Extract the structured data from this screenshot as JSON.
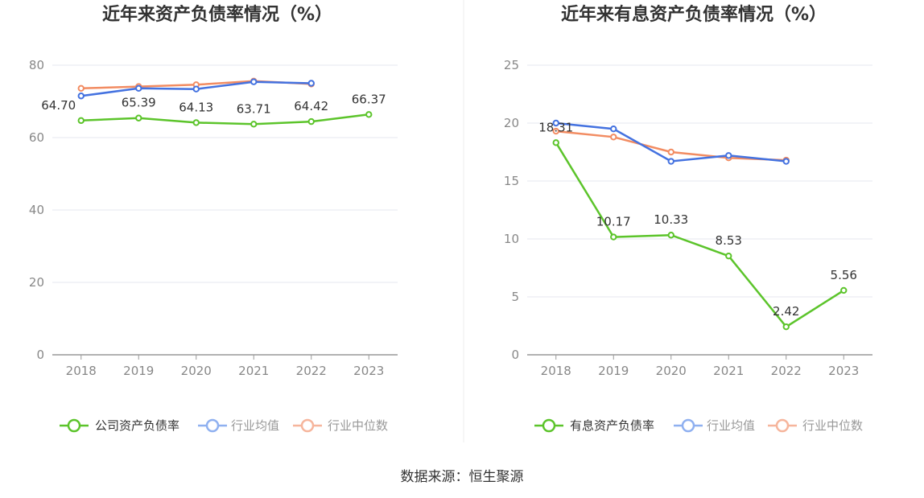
{
  "source": "数据来源：恒生聚源",
  "chart_data": [
    {
      "type": "line",
      "title": "近年来资产负债率情况（%）",
      "categories": [
        "2018",
        "2019",
        "2020",
        "2021",
        "2022",
        "2023"
      ],
      "ylim": [
        0,
        80
      ],
      "yticks": [
        "0",
        "20",
        "40",
        "60",
        "80"
      ],
      "grid": true,
      "legend_position": "bottom",
      "series": [
        {
          "name": "公司资产负债率",
          "color": "#5cc42b",
          "values": [
            64.7,
            65.39,
            64.13,
            63.71,
            64.42,
            66.37
          ],
          "labels": [
            "64.70",
            "65.39",
            "64.13",
            "63.71",
            "64.42",
            "66.37"
          ]
        },
        {
          "name": "行业均值",
          "color": "#4472e0",
          "values": [
            71.5,
            73.6,
            73.4,
            75.4,
            75.0,
            null
          ]
        },
        {
          "name": "行业中位数",
          "color": "#f28c62",
          "values": [
            73.6,
            74.1,
            74.6,
            75.6,
            74.8,
            null
          ]
        }
      ]
    },
    {
      "type": "line",
      "title": "近年来有息资产负债率情况（%）",
      "categories": [
        "2018",
        "2019",
        "2020",
        "2021",
        "2022",
        "2023"
      ],
      "ylim": [
        0,
        25
      ],
      "yticks": [
        "0",
        "5",
        "10",
        "15",
        "20",
        "25"
      ],
      "grid": true,
      "legend_position": "bottom",
      "series": [
        {
          "name": "有息资产负债率",
          "color": "#5cc42b",
          "values": [
            18.31,
            10.17,
            10.33,
            8.53,
            2.42,
            5.56
          ],
          "labels": [
            "18.31",
            "10.17",
            "10.33",
            "8.53",
            "2.42",
            "5.56"
          ]
        },
        {
          "name": "行业均值",
          "color": "#4472e0",
          "values": [
            20.0,
            19.5,
            16.7,
            17.2,
            16.7,
            null
          ]
        },
        {
          "name": "行业中位数",
          "color": "#f28c62",
          "values": [
            19.3,
            18.8,
            17.5,
            17.0,
            16.8,
            null
          ]
        }
      ]
    }
  ]
}
